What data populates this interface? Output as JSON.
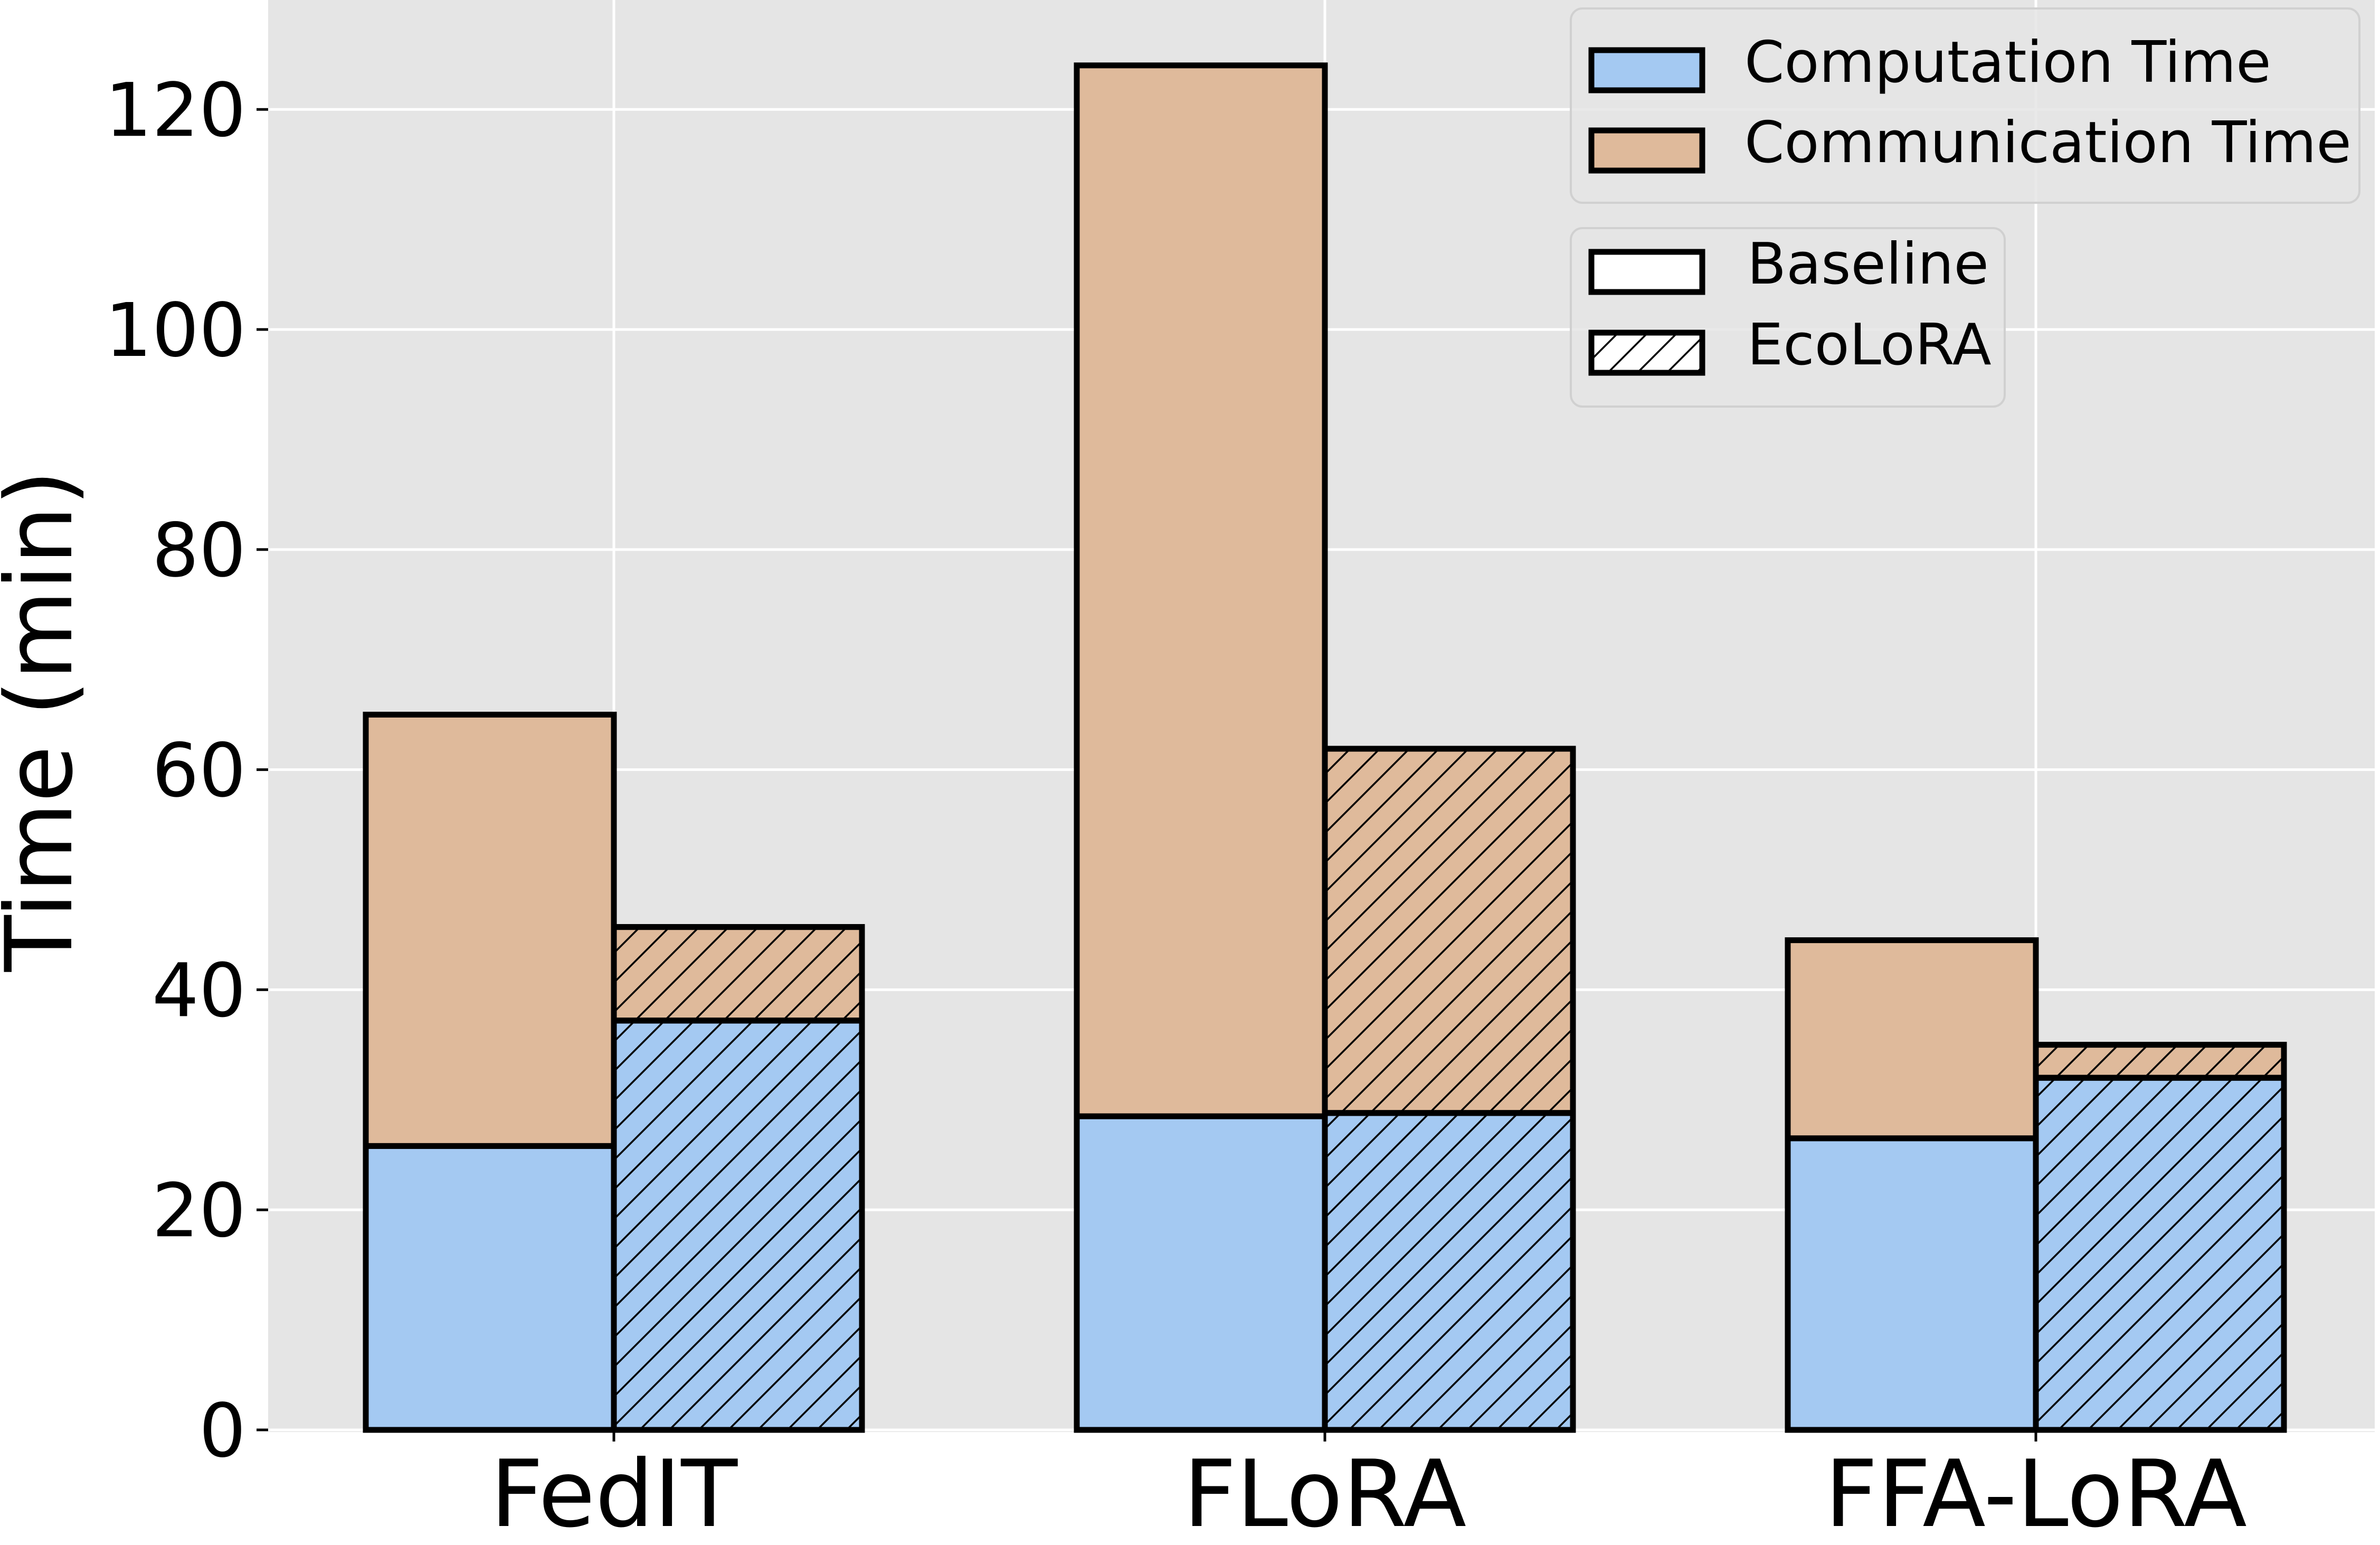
{
  "chart_data": {
    "type": "bar",
    "stacked": true,
    "grouped": true,
    "title": "",
    "xlabel": "",
    "ylabel": "Time (min)",
    "ylim": [
      0,
      130
    ],
    "yticks": [
      0,
      20,
      40,
      60,
      80,
      100,
      120
    ],
    "grid": true,
    "categories": [
      "FedIT",
      "FLoRA",
      "FFA-LoRA"
    ],
    "groups": [
      {
        "name": "Baseline",
        "pattern": "solid",
        "computation": [
          25.8,
          28.5,
          26.5
        ],
        "communication": [
          39.2,
          95.5,
          18.0
        ]
      },
      {
        "name": "EcoLoRA",
        "pattern": "hatch",
        "computation": [
          37.2,
          28.8,
          32.0
        ],
        "communication": [
          8.5,
          33.1,
          3.0
        ]
      }
    ],
    "colors": {
      "computation": "#a4c9f2",
      "communication": "#dfba9b",
      "background": "#e5e5e5",
      "grid": "#ffffff",
      "edge": "#000000"
    },
    "legend": {
      "placement": "top-right",
      "fill_entries": [
        {
          "label": "Computation Time",
          "key": "computation"
        },
        {
          "label": "Communication Time",
          "key": "communication"
        }
      ],
      "pattern_entries": [
        {
          "label": "Baseline",
          "pattern": "solid"
        },
        {
          "label": "EcoLoRA",
          "pattern": "hatch"
        }
      ]
    }
  }
}
